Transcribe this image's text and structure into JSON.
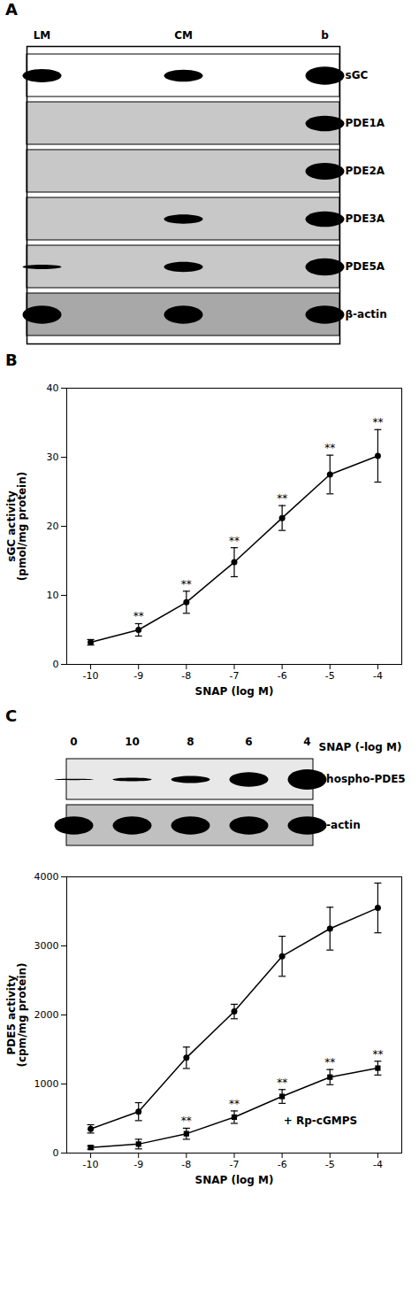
{
  "chart_data": [
    {
      "type": "blot",
      "title": "A",
      "categories": [
        "LM",
        "CM",
        "b"
      ],
      "series": [
        {
          "name": "sGC",
          "color": "#ffffff",
          "values": [
            0.55,
            0.5,
            0.75
          ]
        },
        {
          "name": "PDE1A",
          "color": "#c8c8c8",
          "values": [
            0.0,
            0.0,
            0.65
          ]
        },
        {
          "name": "PDE2A",
          "color": "#c8c8c8",
          "values": [
            0.0,
            0.0,
            0.7
          ]
        },
        {
          "name": "PDE3A",
          "color": "#c8c8c8",
          "values": [
            0.0,
            0.38,
            0.65
          ]
        },
        {
          "name": "PDE5A",
          "color": "#c8c8c8",
          "values": [
            0.18,
            0.42,
            0.72
          ]
        },
        {
          "name": "β-actin",
          "color": "#a8a8a8",
          "values": [
            0.75,
            0.75,
            0.75
          ]
        }
      ]
    },
    {
      "type": "line",
      "title": "B",
      "x": [
        -10,
        -9,
        -8,
        -7,
        -6,
        -5,
        -4
      ],
      "series": [
        {
          "color": "black",
          "marker": "circle",
          "values": [
            3.2,
            5.0,
            9.0,
            14.8,
            21.2,
            27.5,
            30.2
          ],
          "errors": [
            0.4,
            0.9,
            1.6,
            2.1,
            1.8,
            2.8,
            3.8
          ],
          "significance": [
            null,
            "**",
            "**",
            "**",
            "**",
            "**",
            "**"
          ]
        }
      ],
      "xlabel": "SNAP (log M)",
      "ylabel": "sGC activity\n(pmol/mg protein)",
      "xlim": [
        -10.5,
        -3.5
      ],
      "xticks": [
        -10,
        -9,
        -8,
        -7,
        -6,
        -5,
        -4
      ],
      "ylim": [
        0,
        40
      ],
      "yticks": [
        0,
        10,
        20,
        30,
        40
      ]
    },
    {
      "type": "blot",
      "title": "C",
      "categories": [
        "0",
        "10",
        "8",
        "6",
        "4"
      ],
      "xlabel": "SNAP (-log M)",
      "series": [
        {
          "name": "phospho-PDE5",
          "color": "#e8e8e8",
          "values": [
            0.05,
            0.15,
            0.3,
            0.6,
            0.85
          ]
        },
        {
          "name": "β-actin",
          "color": "#c0c0c0",
          "values": [
            0.75,
            0.75,
            0.75,
            0.75,
            0.75
          ]
        }
      ]
    },
    {
      "type": "line",
      "x": [
        -10,
        -9,
        -8,
        -7,
        -6,
        -5,
        -4
      ],
      "series": [
        {
          "color": "black",
          "marker": "circle",
          "values": [
            350,
            600,
            1380,
            2050,
            2850,
            3250,
            3550
          ],
          "errors": [
            60,
            130,
            155,
            105,
            290,
            310,
            360
          ]
        },
        {
          "color": "black",
          "marker": "square",
          "values": [
            80,
            130,
            280,
            520,
            820,
            1100,
            1230
          ],
          "errors": [
            25,
            70,
            80,
            90,
            100,
            110,
            100
          ],
          "significance": [
            null,
            null,
            "**",
            "**",
            "**",
            "**",
            "**"
          ]
        }
      ],
      "annotations": [
        {
          "text": "+ Rp-cGMPS",
          "x": -5.2,
          "y": 420
        }
      ],
      "xlabel": "SNAP (log M)",
      "ylabel": "PDE5 activity\n(cpm/mg protein)",
      "xlim": [
        -10.5,
        -3.5
      ],
      "xticks": [
        -10,
        -9,
        -8,
        -7,
        -6,
        -5,
        -4
      ],
      "ylim": [
        0,
        4000
      ],
      "yticks": [
        0,
        1000,
        2000,
        3000,
        4000
      ]
    }
  ]
}
